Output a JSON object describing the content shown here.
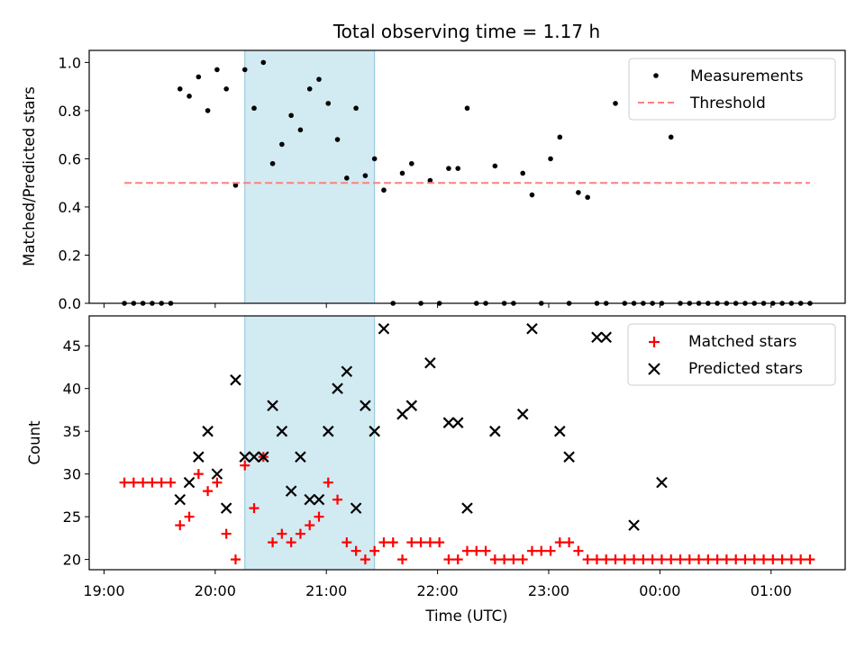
{
  "chart_data": [
    {
      "type": "scatter",
      "title": "Total observing time = 1.17 h",
      "xlabel": "",
      "ylabel": "Matched/Predicted stars",
      "xlim": [
        "18:52",
        "01:40"
      ],
      "ylim": [
        0,
        1.05
      ],
      "yticks": [
        0.0,
        0.2,
        0.4,
        0.6,
        0.8,
        1.0
      ],
      "ytick_labels": [
        "0.0",
        "0.2",
        "0.4",
        "0.6",
        "0.8",
        "1.0"
      ],
      "shaded_region": {
        "from": "20:16",
        "to": "21:26",
        "color": "#add8e6"
      },
      "legend": {
        "placement": "top-right",
        "entries": [
          "Measurements",
          "Threshold"
        ]
      },
      "series": [
        {
          "name": "Measurements",
          "marker": "dot",
          "color": "#000000",
          "x": [
            "19:11",
            "19:16",
            "19:21",
            "19:26",
            "19:31",
            "19:36",
            "19:41",
            "19:46",
            "19:51",
            "19:56",
            "20:01",
            "20:06",
            "20:11",
            "20:16",
            "20:21",
            "20:26",
            "20:31",
            "20:36",
            "20:41",
            "20:46",
            "20:51",
            "20:56",
            "21:01",
            "21:06",
            "21:11",
            "21:16",
            "21:21",
            "21:26",
            "21:31",
            "21:36",
            "21:41",
            "21:46",
            "21:51",
            "21:56",
            "22:01",
            "22:06",
            "22:11",
            "22:16",
            "22:21",
            "22:26",
            "22:31",
            "22:36",
            "22:41",
            "22:46",
            "22:51",
            "22:56",
            "23:01",
            "23:06",
            "23:11",
            "23:16",
            "23:21",
            "23:26",
            "23:31",
            "23:36",
            "23:41",
            "23:46",
            "23:51",
            "23:56",
            "00:01",
            "00:06",
            "00:11",
            "00:16",
            "00:21",
            "00:26",
            "00:31",
            "00:36",
            "00:41",
            "00:46",
            "00:51",
            "00:56",
            "01:01",
            "01:06",
            "01:11",
            "01:16",
            "01:21"
          ],
          "y": [
            0,
            0,
            0,
            0,
            0,
            0,
            0.89,
            0.86,
            0.94,
            0.8,
            0.97,
            0.89,
            0.49,
            0.97,
            0.81,
            1.0,
            0.58,
            0.66,
            0.78,
            0.72,
            0.89,
            0.93,
            0.83,
            0.68,
            0.52,
            0.81,
            0.53,
            0.6,
            0.47,
            0,
            0.54,
            0.58,
            0,
            0.51,
            0,
            0.56,
            0.56,
            0.81,
            0,
            0,
            0.57,
            0,
            0,
            0.54,
            0.45,
            0,
            0.6,
            0.69,
            0,
            0.46,
            0.44,
            0,
            0,
            0.83,
            0,
            0,
            0,
            0,
            0,
            0.69,
            0,
            0,
            0,
            0,
            0,
            0,
            0,
            0,
            0,
            0,
            0,
            0,
            0,
            0,
            0
          ]
        },
        {
          "name": "Threshold",
          "style": "dashed",
          "color": "#ff7f7f",
          "x": [
            "19:11",
            "01:21"
          ],
          "y": [
            0.5,
            0.5
          ]
        }
      ]
    },
    {
      "type": "scatter",
      "title": "",
      "xlabel": "Time (UTC)",
      "ylabel": "Count",
      "xlim": [
        "18:52",
        "01:40"
      ],
      "ylim": [
        18.8,
        48.5
      ],
      "yticks": [
        20,
        25,
        30,
        35,
        40,
        45
      ],
      "ytick_labels": [
        "20",
        "25",
        "30",
        "35",
        "40",
        "45"
      ],
      "xticks": [
        "19:00",
        "20:00",
        "21:00",
        "22:00",
        "23:00",
        "00:00",
        "01:00"
      ],
      "xtick_labels": [
        "19:00",
        "20:00",
        "21:00",
        "22:00",
        "23:00",
        "00:00",
        "01:00"
      ],
      "shaded_region": {
        "from": "20:16",
        "to": "21:26",
        "color": "#add8e6"
      },
      "legend": {
        "placement": "top-right",
        "entries": [
          "Matched stars",
          "Predicted stars"
        ]
      },
      "series": [
        {
          "name": "Matched stars",
          "marker": "plus",
          "color": "#ff0000",
          "x": [
            "19:11",
            "19:16",
            "19:21",
            "19:26",
            "19:31",
            "19:36",
            "19:41",
            "19:46",
            "19:51",
            "19:56",
            "20:01",
            "20:06",
            "20:11",
            "20:16",
            "20:21",
            "20:26",
            "20:31",
            "20:36",
            "20:41",
            "20:46",
            "20:51",
            "20:56",
            "21:01",
            "21:06",
            "21:11",
            "21:16",
            "21:21",
            "21:26",
            "21:31",
            "21:36",
            "21:41",
            "21:46",
            "21:51",
            "21:56",
            "22:01",
            "22:06",
            "22:11",
            "22:16",
            "22:21",
            "22:26",
            "22:31",
            "22:36",
            "22:41",
            "22:46",
            "22:51",
            "22:56",
            "23:01",
            "23:06",
            "23:11",
            "23:16",
            "23:21",
            "23:26",
            "23:31",
            "23:36",
            "23:41",
            "23:46",
            "23:51",
            "23:56",
            "00:01",
            "00:06",
            "00:11",
            "00:16",
            "00:21",
            "00:26",
            "00:31",
            "00:36",
            "00:41",
            "00:46",
            "00:51",
            "00:56",
            "01:01",
            "01:06",
            "01:11",
            "01:16",
            "01:21"
          ],
          "y": [
            29,
            29,
            29,
            29,
            29,
            29,
            24,
            25,
            30,
            28,
            29,
            23,
            20,
            31,
            26,
            32,
            22,
            23,
            22,
            23,
            24,
            25,
            29,
            27,
            22,
            21,
            20,
            21,
            22,
            22,
            20,
            22,
            22,
            22,
            22,
            20,
            20,
            21,
            21,
            21,
            20,
            20,
            20,
            20,
            21,
            21,
            21,
            22,
            22,
            21,
            20,
            20,
            20,
            20,
            20,
            20,
            20,
            20,
            20,
            20,
            20,
            20,
            20,
            20,
            20,
            20,
            20,
            20,
            20,
            20,
            20,
            20,
            20,
            20,
            20
          ]
        },
        {
          "name": "Predicted stars",
          "marker": "x",
          "color": "#000000",
          "x": [
            "19:41",
            "19:46",
            "19:51",
            "19:56",
            "20:01",
            "20:06",
            "20:11",
            "20:16",
            "20:21",
            "20:26",
            "20:31",
            "20:36",
            "20:41",
            "20:46",
            "20:51",
            "20:56",
            "21:01",
            "21:06",
            "21:11",
            "21:16",
            "21:21",
            "21:26",
            "21:31",
            "21:41",
            "21:46",
            "21:56",
            "22:06",
            "22:11",
            "22:16",
            "22:31",
            "22:46",
            "22:51",
            "23:06",
            "23:11",
            "23:26",
            "23:31",
            "23:46",
            "00:01"
          ],
          "y": [
            27,
            29,
            32,
            35,
            30,
            26,
            41,
            32,
            32,
            32,
            38,
            35,
            28,
            32,
            27,
            27,
            35,
            40,
            42,
            26,
            38,
            35,
            47,
            37,
            38,
            43,
            36,
            36,
            26,
            35,
            37,
            47,
            35,
            32,
            46,
            46,
            24,
            29
          ]
        }
      ]
    }
  ]
}
